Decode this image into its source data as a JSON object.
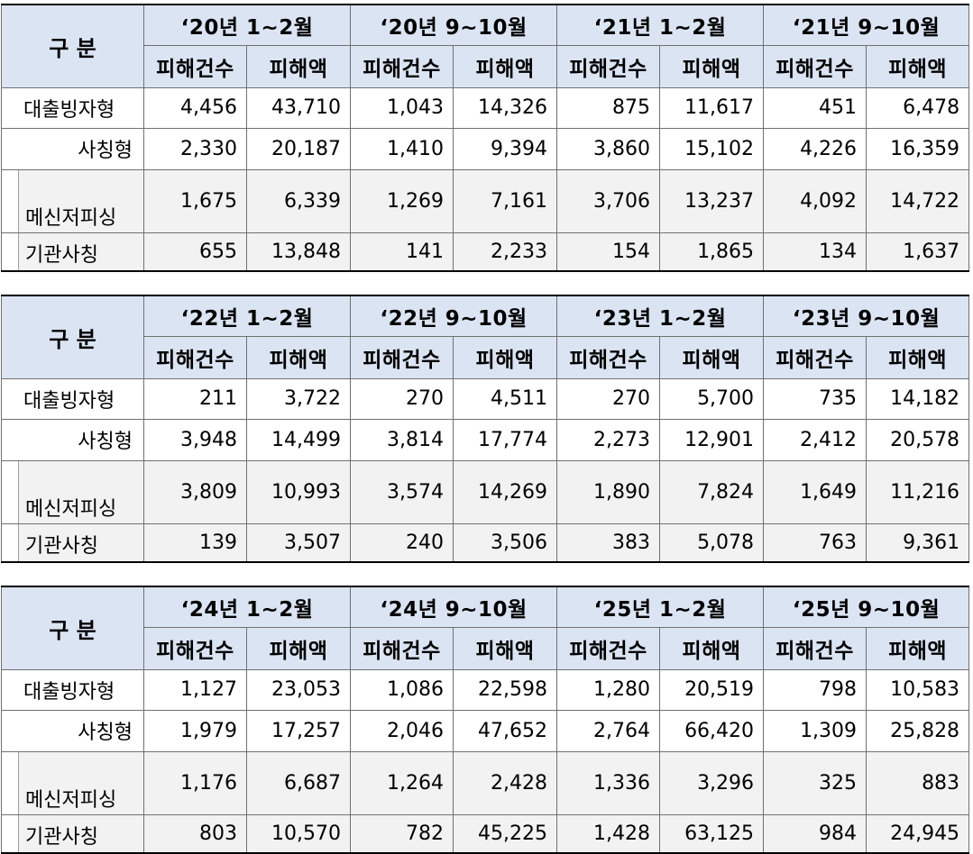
{
  "gubun_label": "구 분",
  "sub_headers": {
    "count": "피해건수",
    "amount": "피해액"
  },
  "row_labels": {
    "loan": "대출빙자형",
    "impersonation": "사칭형",
    "messenger": "메신저피싱",
    "institution": "기관사칭"
  },
  "tables": [
    {
      "periods": [
        "‘20년  1~2월",
        "‘20년  9~10월",
        "‘21년  1~2월",
        "‘21년  9~10월"
      ],
      "rows": {
        "loan": [
          "4,456",
          "43,710",
          "1,043",
          "14,326",
          "875",
          "11,617",
          "451",
          "6,478"
        ],
        "impersonation": [
          "2,330",
          "20,187",
          "1,410",
          "9,394",
          "3,860",
          "15,102",
          "4,226",
          "16,359"
        ],
        "messenger": [
          "1,675",
          "6,339",
          "1,269",
          "7,161",
          "3,706",
          "13,237",
          "4,092",
          "14,722"
        ],
        "institution": [
          "655",
          "13,848",
          "141",
          "2,233",
          "154",
          "1,865",
          "134",
          "1,637"
        ]
      }
    },
    {
      "periods": [
        "‘22년  1~2월",
        "‘22년  9~10월",
        "‘23년  1~2월",
        "‘23년  9~10월"
      ],
      "rows": {
        "loan": [
          "211",
          "3,722",
          "270",
          "4,511",
          "270",
          "5,700",
          "735",
          "14,182"
        ],
        "impersonation": [
          "3,948",
          "14,499",
          "3,814",
          "17,774",
          "2,273",
          "12,901",
          "2,412",
          "20,578"
        ],
        "messenger": [
          "3,809",
          "10,993",
          "3,574",
          "14,269",
          "1,890",
          "7,824",
          "1,649",
          "11,216"
        ],
        "institution": [
          "139",
          "3,507",
          "240",
          "3,506",
          "383",
          "5,078",
          "763",
          "9,361"
        ]
      }
    },
    {
      "periods": [
        "‘24년  1~2월",
        "‘24년  9~10월",
        "‘25년  1~2월",
        "‘25년  9~10월"
      ],
      "rows": {
        "loan": [
          "1,127",
          "23,053",
          "1,086",
          "22,598",
          "1,280",
          "20,519",
          "798",
          "10,583"
        ],
        "impersonation": [
          "1,979",
          "17,257",
          "2,046",
          "47,652",
          "2,764",
          "66,420",
          "1,309",
          "25,828"
        ],
        "messenger": [
          "1,176",
          "6,687",
          "1,264",
          "2,428",
          "1,336",
          "3,296",
          "325",
          "883"
        ],
        "institution": [
          "803",
          "10,570",
          "782",
          "45,225",
          "1,428",
          "63,125",
          "984",
          "24,945"
        ]
      }
    }
  ],
  "colors": {
    "header_bg": "#dbe4f3",
    "sub_row_bg": "#f2f2f2"
  }
}
